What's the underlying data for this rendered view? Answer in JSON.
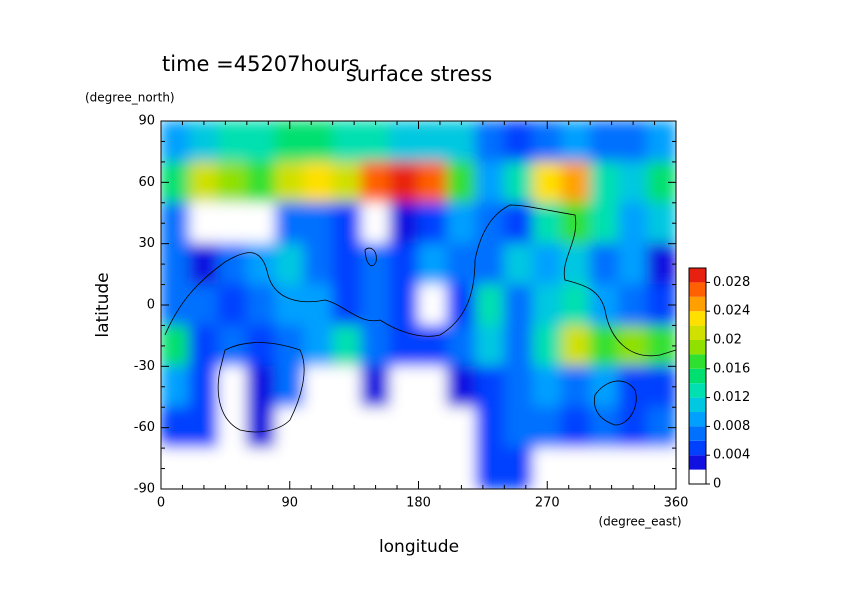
{
  "chart_data": {
    "type": "contour",
    "annotation": "time =45207hours",
    "title": "surface stress",
    "x_label": "longitude",
    "x_unit": "(degree_east)",
    "y_label": "latitude",
    "y_unit": "(degree_north)",
    "xlim": [
      0,
      360
    ],
    "xticks": [
      0,
      90,
      180,
      270,
      360
    ],
    "ylim": [
      -90,
      90
    ],
    "yticks": [
      -90,
      -60,
      -30,
      0,
      30,
      60,
      90
    ],
    "x": [
      10,
      30,
      50,
      70,
      90,
      110,
      130,
      150,
      170,
      190,
      210,
      230,
      250,
      270,
      290,
      310,
      330,
      350
    ],
    "y": [
      80,
      60,
      40,
      20,
      0,
      -20,
      -40,
      -60,
      -80
    ],
    "z": [
      [
        0.008,
        0.01,
        0.012,
        0.012,
        0.014,
        0.014,
        0.012,
        0.012,
        0.01,
        0.01,
        0.01,
        0.006,
        0.004,
        0.006,
        0.008,
        0.006,
        0.006,
        0.008
      ],
      [
        0.014,
        0.02,
        0.018,
        0.016,
        0.02,
        0.022,
        0.02,
        0.026,
        0.03,
        0.026,
        0.016,
        0.008,
        0.012,
        0.022,
        0.024,
        0.012,
        0.01,
        0.014
      ],
      [
        0.006,
        0.001,
        0.0005,
        0.001,
        0.006,
        0.006,
        0.004,
        0.0005,
        0.002,
        0.005,
        0.008,
        0.006,
        0.004,
        0.012,
        0.016,
        0.012,
        0.008,
        0.01
      ],
      [
        0.006,
        0.003,
        0.006,
        0.008,
        0.01,
        0.006,
        0.004,
        0.006,
        0.004,
        0.008,
        0.006,
        0.006,
        0.01,
        0.008,
        0.01,
        0.006,
        0.008,
        0.003
      ],
      [
        0.006,
        0.006,
        0.004,
        0.006,
        0.008,
        0.008,
        0.004,
        0.006,
        0.004,
        0,
        0.004,
        0.012,
        0.006,
        0.01,
        0.012,
        0.008,
        0.006,
        0.004
      ],
      [
        0.014,
        0.004,
        0.006,
        0.004,
        0.006,
        0.008,
        0.012,
        0.006,
        0.004,
        0.004,
        0.006,
        0.01,
        0.006,
        0.012,
        0.02,
        0.016,
        0.018,
        0.016
      ],
      [
        0.008,
        0.004,
        0.001,
        0.002,
        0.006,
        0.001,
        0,
        0.002,
        0,
        0,
        0.002,
        0.004,
        0.006,
        0.008,
        0.006,
        0.008,
        0.004,
        0.004
      ],
      [
        0.004,
        0.004,
        0.001,
        0.002,
        0,
        0,
        0,
        0,
        0,
        0,
        0,
        0.004,
        0.006,
        0.006,
        0.004,
        0.006,
        0.004,
        0.006
      ],
      [
        0,
        0,
        0,
        0,
        0,
        0,
        0,
        0,
        0,
        0,
        0,
        0.004,
        0.004,
        0,
        0,
        0,
        0,
        0
      ]
    ],
    "clim": [
      0,
      0.03
    ],
    "cticks": [
      0,
      0.004,
      0.008,
      0.012,
      0.016,
      0.02,
      0.024,
      0.028
    ],
    "colors": [
      "#ffffff",
      "#1010e0",
      "#0040ff",
      "#0070ff",
      "#00a0ff",
      "#00c8e0",
      "#00e0b0",
      "#00e070",
      "#30e030",
      "#90e000",
      "#d0e000",
      "#ffe000",
      "#ffa000",
      "#ff6000",
      "#e82010"
    ]
  }
}
